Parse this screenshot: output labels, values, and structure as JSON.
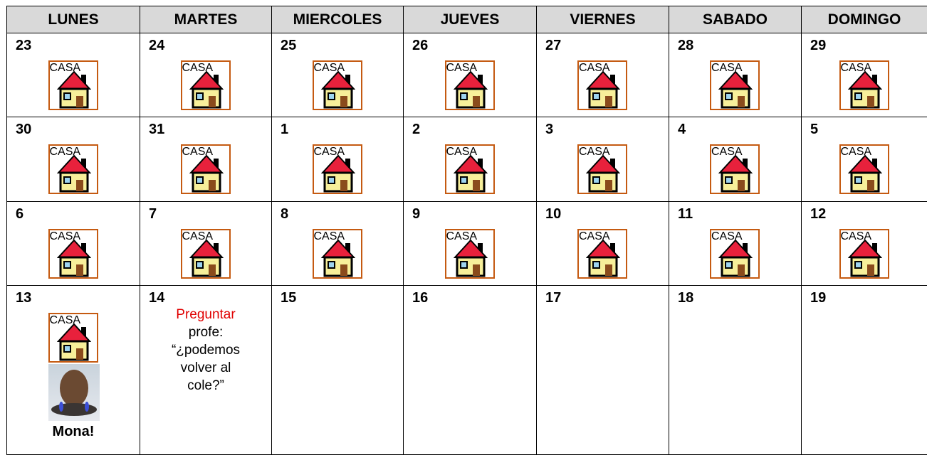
{
  "header": [
    "LUNES",
    "MARTES",
    "MIERCOLES",
    "JUEVES",
    "VIERNES",
    "SABADO",
    "DOMINGO"
  ],
  "weeks": [
    [
      {
        "day": "23",
        "icon": "CASA"
      },
      {
        "day": "24",
        "icon": "CASA"
      },
      {
        "day": "25",
        "icon": "CASA"
      },
      {
        "day": "26",
        "icon": "CASA"
      },
      {
        "day": "27",
        "icon": "CASA"
      },
      {
        "day": "28",
        "icon": "CASA"
      },
      {
        "day": "29",
        "icon": "CASA"
      }
    ],
    [
      {
        "day": "30",
        "icon": "CASA"
      },
      {
        "day": "31",
        "icon": "CASA"
      },
      {
        "day": "1",
        "icon": "CASA"
      },
      {
        "day": "2",
        "icon": "CASA"
      },
      {
        "day": "3",
        "icon": "CASA"
      },
      {
        "day": "4",
        "icon": "CASA"
      },
      {
        "day": "5",
        "icon": "CASA"
      }
    ],
    [
      {
        "day": "6",
        "icon": "CASA"
      },
      {
        "day": "7",
        "icon": "CASA"
      },
      {
        "day": "8",
        "icon": "CASA"
      },
      {
        "day": "9",
        "icon": "CASA"
      },
      {
        "day": "10",
        "icon": "CASA"
      },
      {
        "day": "11",
        "icon": "CASA"
      },
      {
        "day": "12",
        "icon": "CASA"
      }
    ],
    [
      {
        "day": "13",
        "icon": "CASA",
        "caption": "Mona!"
      },
      {
        "day": "14",
        "note": [
          "Preguntar",
          "profe:",
          "“¿podemos",
          "volver al",
          "cole?”"
        ]
      },
      {
        "day": "15"
      },
      {
        "day": "16"
      },
      {
        "day": "17"
      },
      {
        "day": "18"
      },
      {
        "day": "19"
      }
    ]
  ]
}
